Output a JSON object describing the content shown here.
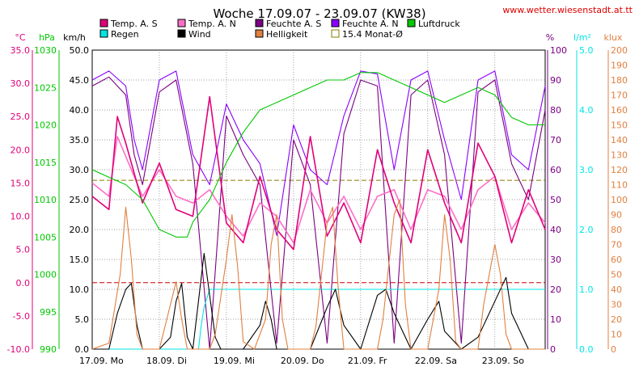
{
  "title": "Woche 17.09.07 - 23.09.07 (KW38)",
  "url": "www.wetter.wiesenstadt.at.tt",
  "legend": [
    {
      "label": "Temp. A. S",
      "color": "#e0007a",
      "kind": "box"
    },
    {
      "label": "Temp. A. N",
      "color": "#ff6ec7",
      "kind": "box"
    },
    {
      "label": "Feuchte A. S",
      "color": "#7a0080",
      "kind": "box"
    },
    {
      "label": "Feuchte A. N",
      "color": "#8a00ff",
      "kind": "box"
    },
    {
      "label": "Luftdruck",
      "color": "#00c800",
      "kind": "box"
    },
    {
      "label": "Regen",
      "color": "#00e5e5",
      "kind": "box"
    },
    {
      "label": "Wind",
      "color": "#000000",
      "kind": "box"
    },
    {
      "label": "Helligkeit",
      "color": "#e08040",
      "kind": "box"
    },
    {
      "label": "15.4 Monat-Ø",
      "color": "#8a7a00",
      "kind": "outline"
    }
  ],
  "chart_data": {
    "type": "line",
    "axes": {
      "temp": {
        "unit": "°C",
        "min": -10,
        "max": 35,
        "ticks": [
          "35.0",
          "30.0",
          "25.0",
          "20.0",
          "15.0",
          "10.0",
          "5.0",
          "0.0",
          "-5.0",
          "-10.0"
        ],
        "color": "#e0007a"
      },
      "pressure": {
        "unit": "hPa",
        "min": 990,
        "max": 1030,
        "ticks": [
          "1030",
          "1025",
          "1020",
          "1015",
          "1010",
          "1005",
          "1000",
          "995",
          "990"
        ],
        "color": "#00c800"
      },
      "wind": {
        "unit": "km/h",
        "min": 0,
        "max": 50,
        "ticks": [
          "50.0",
          "45.0",
          "40.0",
          "35.0",
          "30.0",
          "25.0",
          "20.0",
          "15.0",
          "10.0",
          "5.0",
          "0.0"
        ],
        "color": "#000000"
      },
      "humidity": {
        "unit": "%",
        "min": 0,
        "max": 100,
        "ticks": [
          "100",
          "90",
          "80",
          "70",
          "60",
          "50",
          "40",
          "30",
          "20",
          "10",
          "0"
        ],
        "color": "#7a0080"
      },
      "rain": {
        "unit": "l/m²",
        "min": 0,
        "max": 5,
        "ticks": [
          "5.0",
          "4.0",
          "3.0",
          "2.0",
          "1.0",
          "0.0"
        ],
        "color": "#00e5e5"
      },
      "light": {
        "unit": "klux",
        "min": 0,
        "max": 200,
        "ticks": [
          "200",
          "190",
          "180",
          "170",
          "160",
          "150",
          "140",
          "130",
          "120",
          "110",
          "100",
          "90",
          "80",
          "70",
          "60",
          "50",
          "40",
          "30",
          "20",
          "10",
          "0"
        ],
        "color": "#e08040"
      }
    },
    "x_ticks": [
      "17.09. Mo",
      "18.09. Di",
      "19.09. Mi",
      "20.09. Do",
      "21.09. Fr",
      "22.09. Sa",
      "23.09. So"
    ],
    "reference_lines": [
      {
        "axis": "temp",
        "value": 15.4,
        "color": "#8a7a00"
      },
      {
        "axis": "temp",
        "value": 0,
        "color": "#cc0000"
      }
    ],
    "series": [
      {
        "name": "Feuchte A. N",
        "axis": "humidity",
        "color": "#8a00ff",
        "points": [
          [
            0,
            90
          ],
          [
            6,
            93
          ],
          [
            12,
            88
          ],
          [
            15,
            70
          ],
          [
            18,
            60
          ],
          [
            24,
            90
          ],
          [
            30,
            93
          ],
          [
            36,
            65
          ],
          [
            42,
            55
          ],
          [
            48,
            82
          ],
          [
            54,
            70
          ],
          [
            60,
            62
          ],
          [
            66,
            38
          ],
          [
            72,
            75
          ],
          [
            78,
            60
          ],
          [
            84,
            55
          ],
          [
            90,
            78
          ],
          [
            96,
            93
          ],
          [
            102,
            92
          ],
          [
            108,
            60
          ],
          [
            114,
            90
          ],
          [
            120,
            93
          ],
          [
            126,
            70
          ],
          [
            132,
            50
          ],
          [
            138,
            90
          ],
          [
            144,
            93
          ],
          [
            150,
            65
          ],
          [
            156,
            60
          ],
          [
            162,
            88
          ]
        ]
      },
      {
        "name": "Feuchte A. S",
        "axis": "humidity",
        "color": "#7a0080",
        "points": [
          [
            0,
            88
          ],
          [
            6,
            91
          ],
          [
            12,
            85
          ],
          [
            15,
            65
          ],
          [
            18,
            55
          ],
          [
            24,
            86
          ],
          [
            30,
            90
          ],
          [
            36,
            62
          ],
          [
            42,
            0
          ],
          [
            48,
            78
          ],
          [
            54,
            65
          ],
          [
            60,
            55
          ],
          [
            66,
            2
          ],
          [
            72,
            70
          ],
          [
            78,
            55
          ],
          [
            84,
            2
          ],
          [
            90,
            72
          ],
          [
            96,
            90
          ],
          [
            102,
            88
          ],
          [
            108,
            2
          ],
          [
            114,
            85
          ],
          [
            120,
            90
          ],
          [
            126,
            65
          ],
          [
            132,
            2
          ],
          [
            138,
            86
          ],
          [
            144,
            90
          ],
          [
            150,
            62
          ],
          [
            156,
            50
          ],
          [
            162,
            80
          ]
        ]
      },
      {
        "name": "Temp. A. N",
        "axis": "temp",
        "color": "#ff6ec7",
        "points": [
          [
            0,
            15
          ],
          [
            6,
            13
          ],
          [
            9,
            22
          ],
          [
            12,
            19
          ],
          [
            18,
            13
          ],
          [
            24,
            17
          ],
          [
            30,
            13
          ],
          [
            36,
            12
          ],
          [
            42,
            14
          ],
          [
            48,
            10
          ],
          [
            54,
            7
          ],
          [
            60,
            12
          ],
          [
            66,
            10
          ],
          [
            72,
            6
          ],
          [
            78,
            14
          ],
          [
            84,
            9
          ],
          [
            90,
            13
          ],
          [
            96,
            8
          ],
          [
            102,
            13
          ],
          [
            108,
            14
          ],
          [
            114,
            8
          ],
          [
            120,
            14
          ],
          [
            126,
            13
          ],
          [
            132,
            8
          ],
          [
            138,
            14
          ],
          [
            144,
            16
          ],
          [
            150,
            8
          ],
          [
            156,
            12
          ],
          [
            162,
            9
          ]
        ]
      },
      {
        "name": "Temp. A. S",
        "axis": "temp",
        "color": "#e0007a",
        "points": [
          [
            0,
            13
          ],
          [
            6,
            11
          ],
          [
            9,
            25
          ],
          [
            12,
            21
          ],
          [
            18,
            12
          ],
          [
            24,
            18
          ],
          [
            30,
            11
          ],
          [
            36,
            10
          ],
          [
            42,
            28
          ],
          [
            48,
            9
          ],
          [
            54,
            6
          ],
          [
            60,
            16
          ],
          [
            66,
            8
          ],
          [
            72,
            5
          ],
          [
            78,
            22
          ],
          [
            84,
            7
          ],
          [
            90,
            12
          ],
          [
            96,
            6
          ],
          [
            102,
            20
          ],
          [
            108,
            12
          ],
          [
            114,
            6
          ],
          [
            120,
            20
          ],
          [
            126,
            12
          ],
          [
            132,
            6
          ],
          [
            138,
            21
          ],
          [
            144,
            16
          ],
          [
            150,
            6
          ],
          [
            156,
            14
          ],
          [
            162,
            8
          ]
        ]
      },
      {
        "name": "Luftdruck",
        "axis": "pressure",
        "color": "#00c800",
        "points": [
          [
            0,
            1014
          ],
          [
            6,
            1013
          ],
          [
            12,
            1012
          ],
          [
            18,
            1010
          ],
          [
            24,
            1006
          ],
          [
            30,
            1005
          ],
          [
            34,
            1005
          ],
          [
            36,
            1007
          ],
          [
            42,
            1010
          ],
          [
            48,
            1015
          ],
          [
            54,
            1019
          ],
          [
            60,
            1022
          ],
          [
            66,
            1023
          ],
          [
            72,
            1024
          ],
          [
            78,
            1025
          ],
          [
            84,
            1026
          ],
          [
            90,
            1026
          ],
          [
            96,
            1027
          ],
          [
            102,
            1027
          ],
          [
            108,
            1026
          ],
          [
            114,
            1025
          ],
          [
            120,
            1024
          ],
          [
            126,
            1023
          ],
          [
            132,
            1024
          ],
          [
            138,
            1025
          ],
          [
            144,
            1024
          ],
          [
            150,
            1021
          ],
          [
            156,
            1020
          ],
          [
            162,
            1020
          ]
        ]
      },
      {
        "name": "Regen",
        "axis": "rain",
        "color": "#00e5e5",
        "points": [
          [
            0,
            0
          ],
          [
            38,
            0
          ],
          [
            39,
            0.4
          ],
          [
            40,
            0.7
          ],
          [
            42,
            1.0
          ],
          [
            162,
            1.0
          ]
        ]
      },
      {
        "name": "Wind",
        "axis": "wind",
        "color": "#000000",
        "points": [
          [
            0,
            0
          ],
          [
            6,
            0
          ],
          [
            9,
            6
          ],
          [
            12,
            10
          ],
          [
            14,
            11
          ],
          [
            16,
            4
          ],
          [
            18,
            0
          ],
          [
            24,
            0
          ],
          [
            28,
            2
          ],
          [
            30,
            8
          ],
          [
            32,
            11
          ],
          [
            34,
            2
          ],
          [
            36,
            0
          ],
          [
            40,
            16
          ],
          [
            42,
            9
          ],
          [
            44,
            2
          ],
          [
            46,
            0
          ],
          [
            54,
            0
          ],
          [
            60,
            4
          ],
          [
            62,
            8
          ],
          [
            64,
            5
          ],
          [
            66,
            0
          ],
          [
            78,
            0
          ],
          [
            84,
            7
          ],
          [
            87,
            10
          ],
          [
            90,
            4
          ],
          [
            96,
            0
          ],
          [
            102,
            9
          ],
          [
            105,
            10
          ],
          [
            108,
            6
          ],
          [
            114,
            0
          ],
          [
            120,
            5
          ],
          [
            124,
            8
          ],
          [
            126,
            3
          ],
          [
            132,
            0
          ],
          [
            138,
            2
          ],
          [
            144,
            8
          ],
          [
            148,
            12
          ],
          [
            150,
            6
          ],
          [
            156,
            0
          ],
          [
            162,
            0
          ]
        ]
      },
      {
        "name": "Helligkeit",
        "axis": "light",
        "color": "#e08040",
        "points": [
          [
            0,
            0
          ],
          [
            6,
            4
          ],
          [
            10,
            50
          ],
          [
            12,
            95
          ],
          [
            14,
            60
          ],
          [
            16,
            10
          ],
          [
            18,
            0
          ],
          [
            24,
            0
          ],
          [
            28,
            30
          ],
          [
            30,
            45
          ],
          [
            32,
            20
          ],
          [
            34,
            0
          ],
          [
            42,
            0
          ],
          [
            44,
            10
          ],
          [
            48,
            60
          ],
          [
            50,
            90
          ],
          [
            52,
            55
          ],
          [
            54,
            5
          ],
          [
            58,
            0
          ],
          [
            62,
            20
          ],
          [
            64,
            70
          ],
          [
            66,
            90
          ],
          [
            68,
            20
          ],
          [
            70,
            0
          ],
          [
            78,
            0
          ],
          [
            80,
            15
          ],
          [
            84,
            85
          ],
          [
            86,
            95
          ],
          [
            88,
            40
          ],
          [
            90,
            0
          ],
          [
            102,
            0
          ],
          [
            104,
            20
          ],
          [
            108,
            90
          ],
          [
            110,
            100
          ],
          [
            112,
            30
          ],
          [
            114,
            0
          ],
          [
            120,
            0
          ],
          [
            124,
            40
          ],
          [
            126,
            90
          ],
          [
            128,
            60
          ],
          [
            130,
            5
          ],
          [
            132,
            0
          ],
          [
            138,
            0
          ],
          [
            140,
            30
          ],
          [
            144,
            70
          ],
          [
            146,
            50
          ],
          [
            148,
            10
          ],
          [
            150,
            0
          ],
          [
            162,
            0
          ]
        ]
      }
    ]
  }
}
